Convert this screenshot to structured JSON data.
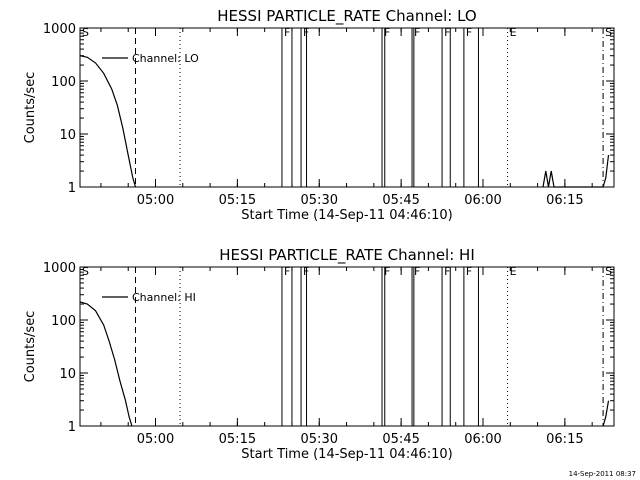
{
  "chart_data": [
    {
      "type": "line",
      "title": "HESSI PARTICLE_RATE Channel: LO",
      "xlabel": "Start Time (14-Sep-11 04:46:10)",
      "ylabel": "Counts/sec",
      "y_scale": "log",
      "ylim": [
        1,
        1000
      ],
      "xlim": [
        "04:46:10",
        "06:24:00"
      ],
      "grid": false,
      "legend": {
        "position": "top-left",
        "entries": [
          "Channel: LO"
        ]
      },
      "x_ticks": [
        "05:00",
        "05:15",
        "05:30",
        "05:45",
        "06:00",
        "06:15"
      ],
      "y_ticks": [
        "1",
        "10",
        "100",
        "1000"
      ],
      "series": [
        {
          "name": "Channel: LO",
          "x": [
            "04:46:10",
            "04:47:30",
            "04:49:00",
            "04:50:30",
            "04:52:00",
            "04:53:00",
            "04:54:00",
            "04:55:00",
            "04:55:50",
            "04:56:20",
            "06:11:00",
            "06:11:30",
            "06:12:00",
            "06:12:30",
            "06:13:00",
            "06:22:00",
            "06:22:30",
            "06:23:00"
          ],
          "y": [
            300,
            280,
            220,
            140,
            70,
            35,
            13,
            4,
            1.5,
            1,
            1,
            2,
            1,
            2,
            1,
            1,
            1.5,
            4
          ]
        }
      ],
      "annotations": {
        "dashed_lines": [
          "04:56:20"
        ],
        "dotted_lines": [
          "05:04:30",
          "06:04:30"
        ],
        "dashdot_lines": [
          "06:22:00"
        ],
        "solid_lines": [
          "05:23:10",
          "05:25:00",
          "05:26:40",
          "05:27:40",
          "05:41:30",
          "05:42:00",
          "05:47:00",
          "05:47:20",
          "05:52:30",
          "05:54:00",
          "05:56:30",
          "05:59:10"
        ],
        "letters": [
          {
            "label": "S",
            "x": "04:46:10"
          },
          {
            "label": "F",
            "x": "05:23:10"
          },
          {
            "label": "F",
            "x": "05:26:40"
          },
          {
            "label": "F",
            "x": "05:41:30"
          },
          {
            "label": "F",
            "x": "05:47:00"
          },
          {
            "label": "F",
            "x": "05:52:30"
          },
          {
            "label": "F",
            "x": "05:56:30"
          },
          {
            "label": "E",
            "x": "06:04:30"
          },
          {
            "label": "S",
            "x": "06:22:00"
          }
        ]
      }
    },
    {
      "type": "line",
      "title": "HESSI PARTICLE_RATE Channel: HI",
      "xlabel": "Start Time (14-Sep-11 04:46:10)",
      "ylabel": "Counts/sec",
      "y_scale": "log",
      "ylim": [
        1,
        1000
      ],
      "xlim": [
        "04:46:10",
        "06:24:00"
      ],
      "grid": false,
      "legend": {
        "position": "top-left",
        "entries": [
          "Channel: HI"
        ]
      },
      "x_ticks": [
        "05:00",
        "05:15",
        "05:30",
        "05:45",
        "06:00",
        "06:15"
      ],
      "y_ticks": [
        "1",
        "10",
        "100",
        "1000"
      ],
      "series": [
        {
          "name": "Channel: HI",
          "x": [
            "04:46:10",
            "04:47:30",
            "04:49:00",
            "04:50:30",
            "04:51:30",
            "04:52:30",
            "04:53:30",
            "04:54:30",
            "04:55:10",
            "04:55:40",
            "06:22:00",
            "06:22:30",
            "06:23:00"
          ],
          "y": [
            220,
            200,
            150,
            80,
            40,
            18,
            7,
            3,
            1.5,
            1,
            1,
            1.5,
            3
          ]
        }
      ],
      "annotations": {
        "dashed_lines": [
          "04:56:20"
        ],
        "dotted_lines": [
          "05:04:30",
          "06:04:30"
        ],
        "dashdot_lines": [
          "06:22:00"
        ],
        "solid_lines": [
          "05:23:10",
          "05:25:00",
          "05:26:40",
          "05:27:40",
          "05:41:30",
          "05:42:00",
          "05:47:00",
          "05:47:20",
          "05:52:30",
          "05:54:00",
          "05:56:30",
          "05:59:10"
        ],
        "letters": [
          {
            "label": "S",
            "x": "04:46:10"
          },
          {
            "label": "F",
            "x": "05:23:10"
          },
          {
            "label": "F",
            "x": "05:26:40"
          },
          {
            "label": "F",
            "x": "05:41:30"
          },
          {
            "label": "F",
            "x": "05:47:00"
          },
          {
            "label": "F",
            "x": "05:52:30"
          },
          {
            "label": "F",
            "x": "05:56:30"
          },
          {
            "label": "E",
            "x": "06:04:30"
          },
          {
            "label": "S",
            "x": "06:22:00"
          }
        ]
      }
    }
  ],
  "timestamp": "14-Sep-2011 08:37"
}
